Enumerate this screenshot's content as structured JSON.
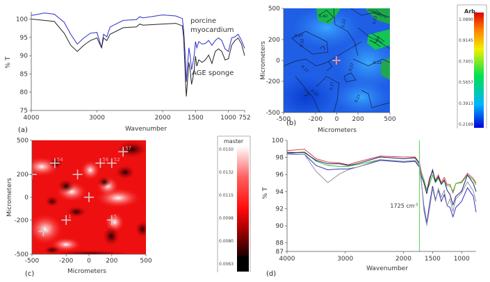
{
  "chart_data": [
    {
      "panel": "(a)",
      "type": "line",
      "xlabel": "Wavenumber",
      "ylabel": "% T",
      "xlim": [
        4000,
        752
      ],
      "ylim": [
        75,
        102
      ],
      "xticks": [
        "4000",
        "3000",
        "2000",
        "1500",
        "1000",
        "752"
      ],
      "xtick_values": [
        4000,
        3000,
        2000,
        1500,
        1000,
        752
      ],
      "yticks": [
        "100",
        "95",
        "90",
        "85",
        "80",
        "75"
      ],
      "ytick_values": [
        100,
        95,
        90,
        85,
        80,
        75
      ],
      "annotations": [
        "porcine",
        "myocardium",
        "AGE sponge"
      ],
      "series": [
        {
          "name": "porcine myocardium",
          "color": "#2b2bcf",
          "x": [
            4000,
            3800,
            3650,
            3500,
            3400,
            3300,
            3200,
            3100,
            3000,
            2930,
            2900,
            2850,
            2800,
            2600,
            2400,
            2350,
            2300,
            2000,
            1800,
            1700,
            1680,
            1650,
            1640,
            1600,
            1580,
            1560,
            1540,
            1520,
            1500,
            1480,
            1450,
            1400,
            1350,
            1300,
            1250,
            1200,
            1150,
            1100,
            1050,
            1000,
            950,
            900,
            850,
            800,
            752
          ],
          "y": [
            101,
            101.5,
            101.5,
            99,
            96,
            93,
            95,
            96,
            96.5,
            92,
            96,
            95,
            98,
            99.5,
            100,
            100.5,
            100.5,
            101,
            101,
            100,
            97,
            88,
            83,
            92,
            90,
            86,
            88,
            90,
            94,
            92,
            94,
            93,
            93.5,
            94,
            93,
            94,
            95,
            94,
            92,
            91,
            95,
            95,
            96,
            94,
            92
          ]
        },
        {
          "name": "AGE sponge",
          "color": "#222222",
          "x": [
            4000,
            3800,
            3650,
            3500,
            3400,
            3300,
            3200,
            3100,
            3000,
            2930,
            2900,
            2850,
            2800,
            2600,
            2400,
            2350,
            2300,
            2000,
            1800,
            1700,
            1680,
            1650,
            1640,
            1600,
            1580,
            1560,
            1540,
            1520,
            1500,
            1480,
            1450,
            1400,
            1350,
            1300,
            1250,
            1200,
            1150,
            1100,
            1050,
            1000,
            950,
            900,
            850,
            800,
            752
          ],
          "y": [
            100,
            99.5,
            99.5,
            96,
            93,
            91,
            93,
            94,
            95,
            92,
            95,
            94,
            96,
            97.5,
            98,
            98.5,
            98.5,
            98.5,
            99,
            98,
            95,
            82,
            79,
            88,
            86,
            82,
            84,
            86,
            90,
            87,
            89,
            88,
            89,
            90,
            88,
            91,
            92,
            91,
            89,
            89,
            93,
            94,
            95,
            93,
            90
          ]
        }
      ]
    },
    {
      "panel": "(b)",
      "type": "heatmap",
      "xlabel": "Micrometers",
      "ylabel": "Micrometers",
      "xlim": [
        -500,
        500
      ],
      "ylim": [
        -500,
        500
      ],
      "xticks": [
        "-500",
        "-200",
        "0",
        "200",
        "500"
      ],
      "yticks": [
        "500",
        "200",
        "0",
        "-200",
        "-500"
      ],
      "contour_labels": [
        "0.27",
        "0.22",
        "0.17",
        "0.22",
        "0.27",
        "0.27",
        "0.22",
        "0.22",
        "0.27",
        "0.42",
        "0.22"
      ],
      "colorbar": {
        "title": "Arb.",
        "ticks": [
          "1.0890",
          "0.9145",
          "0.7401",
          "0.5657",
          "0.3913",
          "0.2169"
        ],
        "range": [
          0.2169,
          1.089
        ],
        "colors": [
          "#0000d8",
          "#00b4ff",
          "#00e050",
          "#f0f000",
          "#ff8000",
          "#e00000"
        ]
      },
      "marker": {
        "x": 0,
        "y": 0,
        "color": "#e89090"
      }
    },
    {
      "panel": "(c)",
      "type": "heatmap",
      "xlabel": "Micrometers",
      "ylabel": "Micrometers",
      "xlim": [
        -500,
        500
      ],
      "ylim": [
        -500,
        500
      ],
      "xticks": [
        "-500",
        "-200",
        "0",
        "200",
        "500"
      ],
      "yticks": [
        "500",
        "200",
        "0",
        "-200",
        "-500"
      ],
      "colorbar": {
        "title": "master",
        "ticks": [
          "0.0150",
          "0.0132",
          "0.0115",
          "0.0098",
          "0.0080",
          "0.0063"
        ],
        "range": [
          0.0063,
          0.015
        ],
        "colors": [
          "#000000",
          "#400000",
          "#ff0000",
          "#ff4040",
          "#ffffff"
        ]
      },
      "markers": [
        {
          "x": -400,
          "y": -300,
          "label": "53"
        },
        {
          "x": -300,
          "y": 300,
          "label": "54"
        },
        {
          "x": -200,
          "y": -200,
          "label": "1"
        },
        {
          "x": -100,
          "y": 200,
          "label": ""
        },
        {
          "x": 0,
          "y": 0,
          "label": ""
        },
        {
          "x": 100,
          "y": 300,
          "label": "56"
        },
        {
          "x": 200,
          "y": 300,
          "label": "52"
        },
        {
          "x": 300,
          "y": 400,
          "label": "57"
        },
        {
          "x": 200,
          "y": -200,
          "label": "5"
        },
        {
          "x": -500,
          "y": 200,
          "label": ""
        }
      ]
    },
    {
      "panel": "(d)",
      "type": "line",
      "xlabel": "Wavenumber",
      "ylabel": "% T",
      "xlim": [
        4000,
        752
      ],
      "ylim": [
        87,
        100
      ],
      "xticks": [
        "4000",
        "3000",
        "2000",
        "1500",
        "1000"
      ],
      "xtick_values": [
        4000,
        3000,
        2000,
        1500,
        1000
      ],
      "yticks": [
        "100",
        "98",
        "96",
        "94",
        "92",
        "90",
        "88",
        "87"
      ],
      "ytick_values": [
        100,
        98,
        96,
        94,
        92,
        90,
        88,
        87
      ],
      "annotation": {
        "text": "1725 cm",
        "superscript": "-1",
        "x": 1725,
        "line_color": "#6ad46a"
      },
      "series": [
        {
          "name": "red",
          "color": "#e04040",
          "x": [
            4000,
            3700,
            3500,
            3300,
            3100,
            2950,
            2800,
            2400,
            2000,
            1800,
            1725,
            1700,
            1650,
            1600,
            1550,
            1500,
            1450,
            1400,
            1350,
            1300,
            1250,
            1200,
            1150,
            1100,
            1000,
            900,
            800,
            752
          ],
          "y": [
            98.8,
            98.8,
            98,
            97.3,
            97.5,
            97,
            97.6,
            98,
            98.2,
            97.9,
            97.5,
            96.3,
            95.5,
            94,
            95.8,
            96.2,
            95.5,
            95.8,
            95.2,
            95.5,
            95,
            94.7,
            94,
            94.8,
            95.3,
            96,
            95.7,
            95
          ]
        },
        {
          "name": "green",
          "color": "#30c030",
          "x": [
            4000,
            3700,
            3500,
            3300,
            3100,
            2950,
            2800,
            2400,
            2000,
            1800,
            1725,
            1700,
            1650,
            1600,
            1550,
            1500,
            1450,
            1400,
            1350,
            1300,
            1250,
            1200,
            1150,
            1100,
            1000,
            900,
            800,
            752
          ],
          "y": [
            98.5,
            98.5,
            97.7,
            96.9,
            97.1,
            96.8,
            97.3,
            97.6,
            97.6,
            97.4,
            97.2,
            96,
            95.6,
            94,
            95,
            95.8,
            95.2,
            95.4,
            95,
            95.1,
            94.8,
            94.5,
            94.2,
            94.8,
            95.2,
            95.8,
            95.5,
            94.8
          ]
        },
        {
          "name": "navy",
          "color": "#1c1c70",
          "x": [
            4000,
            3700,
            3500,
            3300,
            3100,
            2950,
            2800,
            2400,
            2000,
            1800,
            1725,
            1700,
            1650,
            1600,
            1550,
            1500,
            1450,
            1400,
            1350,
            1300,
            1250,
            1200,
            1150,
            1100,
            1000,
            900,
            800,
            752
          ],
          "y": [
            98.6,
            98.4,
            97.8,
            97.1,
            97.4,
            96.9,
            97.4,
            97.9,
            98,
            97.8,
            97.4,
            95.8,
            95.2,
            93.6,
            95.5,
            96.4,
            95.3,
            95.6,
            95,
            95.2,
            94.3,
            93.5,
            92.6,
            93.3,
            94.2,
            95.8,
            95.1,
            94
          ]
        },
        {
          "name": "blue",
          "color": "#3030c0",
          "x": [
            4000,
            3700,
            3500,
            3300,
            3100,
            2950,
            2800,
            2400,
            2000,
            1800,
            1725,
            1700,
            1650,
            1600,
            1550,
            1500,
            1450,
            1400,
            1350,
            1300,
            1250,
            1200,
            1150,
            1100,
            1000,
            900,
            800,
            752
          ],
          "y": [
            98.4,
            98.2,
            97.2,
            96.4,
            96.8,
            96.5,
            97,
            97.5,
            97.6,
            97.4,
            97,
            95.5,
            92.5,
            90.2,
            92.8,
            94.5,
            93.2,
            94,
            93,
            93.5,
            92.5,
            92,
            91.2,
            92,
            93,
            94.3,
            93.6,
            91.6
          ]
        },
        {
          "name": "gray",
          "color": "#9090a0",
          "x": [
            4000,
            3700,
            3500,
            3300,
            3100,
            2950,
            2800,
            2400,
            2000,
            1800,
            1725,
            1700,
            1650,
            1600,
            1550,
            1500,
            1450,
            1400,
            1350,
            1300,
            1250,
            1200,
            1150,
            1100,
            1000,
            900,
            800,
            752
          ],
          "y": [
            98.5,
            98.2,
            96.5,
            94.9,
            96.2,
            96.4,
            97,
            97.6,
            97.7,
            97.5,
            97.2,
            95.8,
            92,
            89.9,
            92.2,
            94.2,
            93,
            94.2,
            93.5,
            94,
            92.5,
            93,
            91.8,
            93,
            94,
            95,
            94.2,
            92.8
          ]
        }
      ]
    }
  ]
}
